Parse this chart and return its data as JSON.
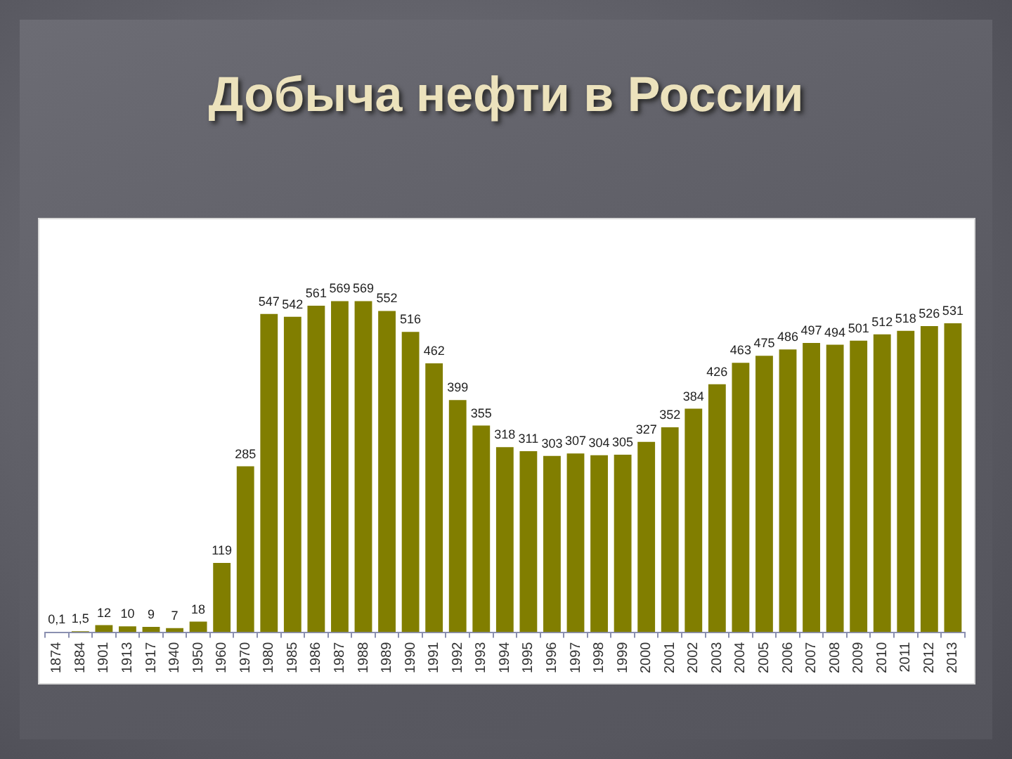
{
  "chart_data": {
    "type": "bar",
    "title": "Добыча нефти в России",
    "categories": [
      "1874",
      "1884",
      "1901",
      "1913",
      "1917",
      "1940",
      "1950",
      "1960",
      "1970",
      "1980",
      "1985",
      "1986",
      "1987",
      "1988",
      "1989",
      "1990",
      "1991",
      "1992",
      "1993",
      "1994",
      "1995",
      "1996",
      "1997",
      "1998",
      "1999",
      "2000",
      "2001",
      "2002",
      "2003",
      "2004",
      "2005",
      "2006",
      "2007",
      "2008",
      "2009",
      "2010",
      "2011",
      "2012",
      "2013"
    ],
    "values": [
      0.1,
      1.5,
      12,
      10,
      9,
      7,
      18,
      119,
      285,
      547,
      542,
      561,
      569,
      569,
      552,
      516,
      462,
      399,
      355,
      318,
      311,
      303,
      307,
      304,
      305,
      327,
      352,
      384,
      426,
      463,
      475,
      486,
      497,
      494,
      501,
      512,
      518,
      526,
      531
    ],
    "value_labels": [
      "0,1",
      "1,5",
      "12",
      "10",
      "9",
      "7",
      "18",
      "119",
      "285",
      "547",
      "542",
      "561",
      "569",
      "569",
      "552",
      "516",
      "462",
      "399",
      "355",
      "318",
      "311",
      "303",
      "307",
      "304",
      "305",
      "327",
      "352",
      "384",
      "426",
      "463",
      "475",
      "486",
      "497",
      "494",
      "501",
      "512",
      "518",
      "526",
      "531"
    ],
    "color": "#817e00"
  }
}
